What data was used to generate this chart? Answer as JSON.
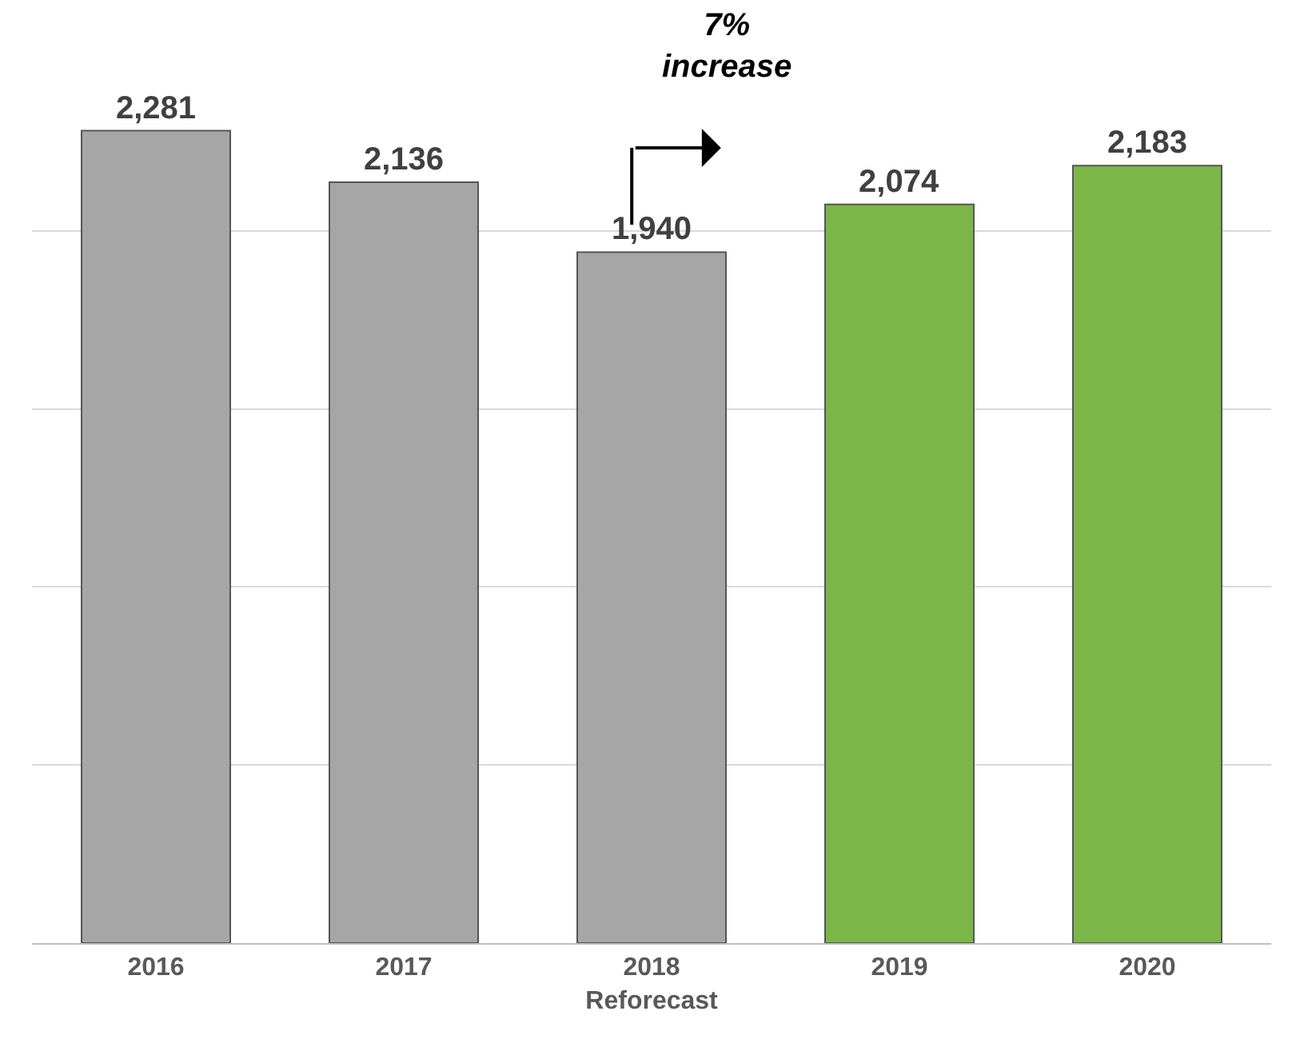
{
  "chart_data": {
    "type": "bar",
    "categories": [
      "2016",
      "2017",
      "2018\nReforecast",
      "2019",
      "2020"
    ],
    "values": [
      2281,
      2136,
      1940,
      2074,
      2183
    ],
    "value_labels": [
      "2,281",
      "2,136",
      "1,940",
      "2,074",
      "2,183"
    ],
    "colors": [
      "#a6a6a6",
      "#a6a6a6",
      "#a6a6a6",
      "#7ab648",
      "#7ab648"
    ],
    "tick_labels": "x",
    "grid": "y",
    "annotations": [
      "7%\nincrease"
    ]
  }
}
